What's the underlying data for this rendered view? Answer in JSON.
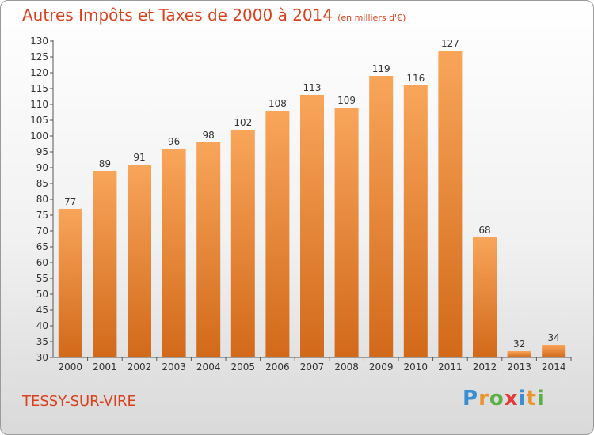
{
  "header": {
    "title": "Autres Impôts et Taxes de 2000 à 2014",
    "unit": "(en milliers d'€)"
  },
  "footer": {
    "commune": "TESSY-SUR-VIRE",
    "logo_text": "Proxiti"
  },
  "colors": {
    "title": "#d9401c",
    "bar_top": "#f8a55a",
    "bar_bottom": "#d2691a",
    "logo": [
      "#3a8fd0",
      "#e8962b",
      "#5bb043",
      "#e23b3b",
      "#3a8fd0",
      "#e8962b",
      "#5bb043"
    ]
  },
  "chart_data": {
    "type": "bar",
    "title": "Autres Impôts et Taxes de 2000 à 2014",
    "subtitle": "(en milliers d'€)",
    "categories": [
      "2000",
      "2001",
      "2002",
      "2003",
      "2004",
      "2005",
      "2006",
      "2007",
      "2008",
      "2009",
      "2010",
      "2011",
      "2012",
      "2013",
      "2014"
    ],
    "values": [
      77,
      89,
      91,
      96,
      98,
      102,
      108,
      113,
      109,
      119,
      116,
      127,
      68,
      32,
      34
    ],
    "ylim": [
      30,
      130
    ],
    "yticks": [
      30,
      35,
      40,
      45,
      50,
      55,
      60,
      65,
      70,
      75,
      80,
      85,
      90,
      95,
      100,
      105,
      110,
      115,
      120,
      125,
      130
    ],
    "xlabel": "",
    "ylabel": "",
    "grid": false
  }
}
